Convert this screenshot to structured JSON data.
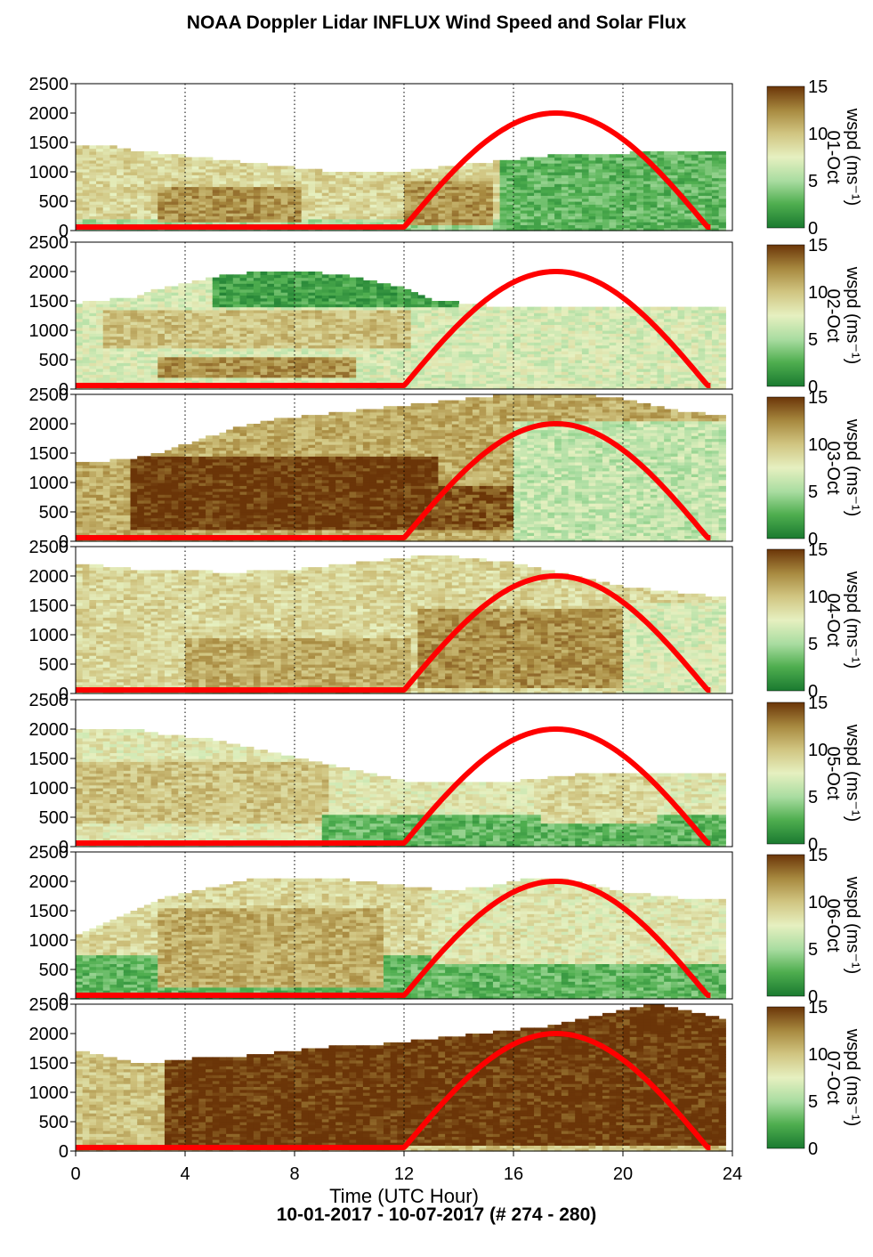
{
  "chart_data": {
    "type": "heatmap",
    "title": "NOAA Doppler Lidar INFLUX Wind Speed and Solar Flux",
    "footer": "10-01-2017 - 10-07-2017   (# 274 - 280)",
    "xlabel": "Time (UTC Hour)",
    "xlim": [
      0,
      24
    ],
    "xticks": [
      "0",
      "4",
      "8",
      "12",
      "16",
      "20",
      "24"
    ],
    "ylim": [
      0,
      2500
    ],
    "yticks": [
      "0",
      "500",
      "1000",
      "1500",
      "2000",
      "2500"
    ],
    "colorbar": {
      "label": "wspd (ms⁻¹)",
      "min": 0,
      "max": 15,
      "ticks": [
        "0",
        "5",
        "10",
        "15"
      ],
      "colors": [
        "#1a7a30",
        "#4fae4f",
        "#a8dca0",
        "#e6f0c0",
        "#d0c480",
        "#a88a40",
        "#6b3508"
      ]
    },
    "solar_flux": {
      "color": "#ff0000",
      "sunrise_hour": 11.9,
      "sunset_hour": 23.2,
      "peak_hour": 17.5,
      "peak_height": 2000
    },
    "panels": [
      {
        "day_label": "01-Oct",
        "top_profile": [
          1450,
          1420,
          1350,
          1300,
          1250,
          1200,
          1150,
          1100,
          1050,
          1000,
          1000,
          1000,
          1000,
          1050,
          1100,
          1150,
          1200,
          1250,
          1300,
          1300,
          1300,
          1350,
          1350,
          1350,
          1350
        ],
        "bands": [
          {
            "name": "surface",
            "h0": 0,
            "h1": 150,
            "x0": 0,
            "x1": 23.7,
            "ws": 5
          },
          {
            "name": "low-jet",
            "h0": 150,
            "h1": 700,
            "x0": 3,
            "x1": 8,
            "ws": 12
          },
          {
            "name": "aft",
            "h0": 100,
            "h1": 800,
            "x0": 12,
            "x1": 15,
            "ws": 12
          },
          {
            "name": "mix",
            "h0": 0,
            "h1": 1300,
            "x0": 15.5,
            "x1": 23.7,
            "ws": 3
          }
        ],
        "base_ws": 9
      },
      {
        "day_label": "02-Oct",
        "top_profile": [
          1450,
          1500,
          1550,
          1700,
          1800,
          1900,
          1950,
          2000,
          2000,
          1950,
          1900,
          1800,
          1700,
          1500,
          1450,
          1400,
          1400,
          1400,
          1400,
          1400,
          1400,
          1400,
          1400,
          1400,
          1400
        ],
        "bands": [
          {
            "name": "top-green",
            "h0": 1400,
            "h1": 2000,
            "x0": 5,
            "x1": 14,
            "ws": 2
          },
          {
            "name": "mid",
            "h0": 700,
            "h1": 1300,
            "x0": 1,
            "x1": 12,
            "ws": 10
          },
          {
            "name": "low",
            "h0": 200,
            "h1": 500,
            "x0": 3,
            "x1": 10,
            "ws": 12
          },
          {
            "name": "aft",
            "h0": 0,
            "h1": 1400,
            "x0": 14,
            "x1": 23.7,
            "ws": 7
          }
        ],
        "base_ws": 7
      },
      {
        "day_label": "03-Oct",
        "top_profile": [
          1350,
          1350,
          1400,
          1500,
          1650,
          1800,
          1950,
          2050,
          2100,
          2150,
          2200,
          2250,
          2300,
          2350,
          2400,
          2450,
          2500,
          2500,
          2500,
          2450,
          2400,
          2300,
          2200,
          2150,
          2100
        ],
        "bands": [
          {
            "name": "core",
            "h0": 200,
            "h1": 1400,
            "x0": 2,
            "x1": 13,
            "ws": 15
          },
          {
            "name": "core2",
            "h0": 200,
            "h1": 900,
            "x0": 13,
            "x1": 16,
            "ws": 14
          },
          {
            "name": "aft",
            "h0": 0,
            "h1": 2000,
            "x0": 16,
            "x1": 23.7,
            "ws": 6
          }
        ],
        "base_ws": 11
      },
      {
        "day_label": "04-Oct",
        "top_profile": [
          2200,
          2150,
          2100,
          2100,
          2100,
          2050,
          2050,
          2100,
          2100,
          2150,
          2200,
          2250,
          2300,
          2350,
          2300,
          2250,
          2200,
          2100,
          2000,
          1900,
          1800,
          1750,
          1700,
          1650,
          1650
        ],
        "bands": [
          {
            "name": "low",
            "h0": 0,
            "h1": 900,
            "x0": 4,
            "x1": 12,
            "ws": 11
          },
          {
            "name": "aft",
            "h0": 100,
            "h1": 1400,
            "x0": 12.5,
            "x1": 20,
            "ws": 12
          },
          {
            "name": "late",
            "h0": 0,
            "h1": 1500,
            "x0": 20,
            "x1": 23.7,
            "ws": 7
          }
        ],
        "base_ws": 9
      },
      {
        "day_label": "05-Oct",
        "top_profile": [
          2000,
          2000,
          2000,
          1900,
          1850,
          1800,
          1700,
          1600,
          1500,
          1400,
          1300,
          1200,
          1100,
          1100,
          1100,
          1100,
          1100,
          1150,
          1200,
          1250,
          1250,
          1250,
          1250,
          1250,
          1250
        ],
        "bands": [
          {
            "name": "mid",
            "h0": 400,
            "h1": 1400,
            "x0": 0,
            "x1": 9,
            "ws": 10
          },
          {
            "name": "low-green",
            "h0": 0,
            "h1": 500,
            "x0": 9,
            "x1": 23.7,
            "ws": 3
          },
          {
            "name": "aft",
            "h0": 400,
            "h1": 1200,
            "x0": 17,
            "x1": 21,
            "ws": 9
          }
        ],
        "base_ws": 8
      },
      {
        "day_label": "06-Oct",
        "top_profile": [
          1100,
          1300,
          1500,
          1700,
          1800,
          1900,
          2000,
          2050,
          2050,
          2050,
          2000,
          1950,
          1900,
          1850,
          1850,
          1900,
          2000,
          2050,
          2000,
          1900,
          1800,
          1750,
          1700,
          1700,
          1700
        ],
        "bands": [
          {
            "name": "low-green",
            "h0": 0,
            "h1": 700,
            "x0": 0,
            "x1": 23.7,
            "ws": 3
          },
          {
            "name": "mid",
            "h0": 200,
            "h1": 1500,
            "x0": 3,
            "x1": 11,
            "ws": 11
          },
          {
            "name": "aft",
            "h0": 600,
            "h1": 2000,
            "x0": 13,
            "x1": 23.7,
            "ws": 8
          }
        ],
        "base_ws": 9
      },
      {
        "day_label": "07-Oct",
        "top_profile": [
          1700,
          1600,
          1500,
          1500,
          1550,
          1600,
          1600,
          1650,
          1700,
          1750,
          1800,
          1800,
          1850,
          1900,
          1950,
          2000,
          2050,
          2100,
          2200,
          2300,
          2400,
          2500,
          2400,
          2300,
          2200
        ],
        "bands": [
          {
            "name": "core",
            "h0": 100,
            "h1": 2500,
            "x0": 3,
            "x1": 23.7,
            "ws": 15
          },
          {
            "name": "early",
            "h0": 0,
            "h1": 1500,
            "x0": 0,
            "x1": 3,
            "ws": 10
          }
        ],
        "base_ws": 10
      }
    ]
  }
}
